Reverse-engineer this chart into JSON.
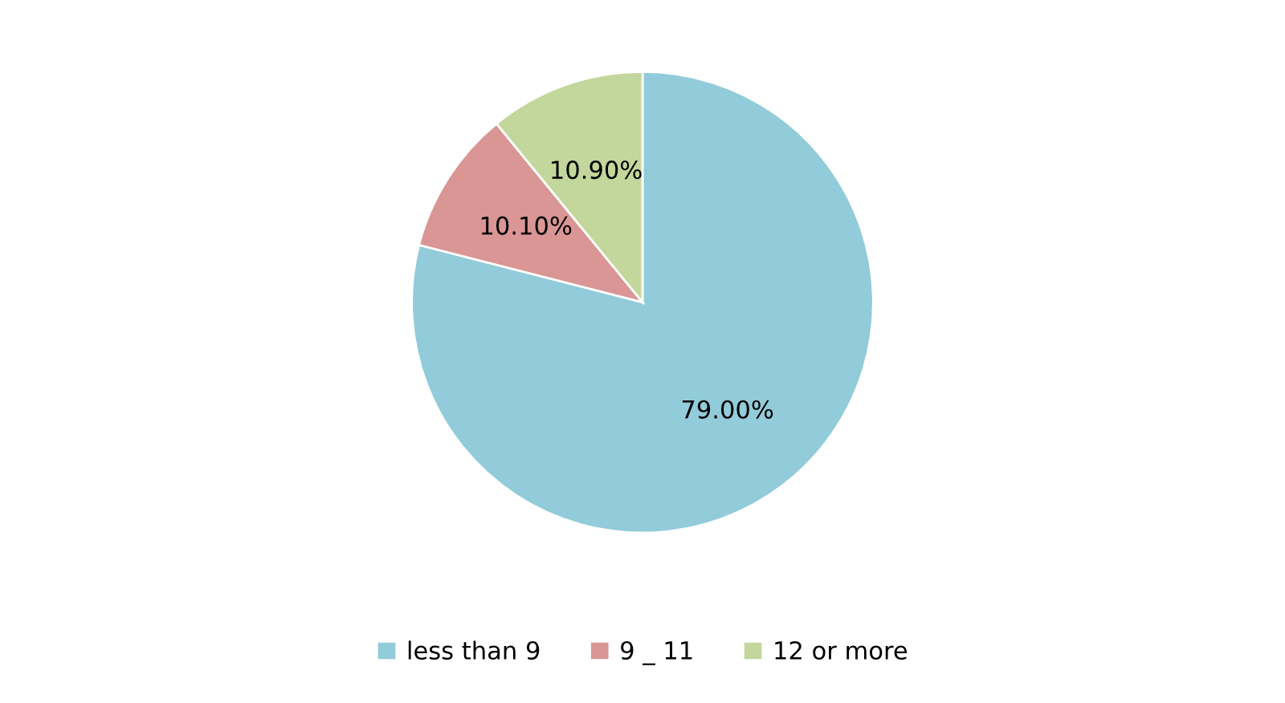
{
  "chart_data": {
    "type": "pie",
    "categories": [
      "less than 9",
      "9 _ 11",
      "12 or more"
    ],
    "values": [
      79.0,
      10.1,
      10.9
    ],
    "value_labels": [
      "79.00%",
      "10.10%",
      "10.90%"
    ],
    "colors": [
      "#92cbd9",
      "#d99694",
      "#c3d69b"
    ],
    "legend": "bottom"
  }
}
